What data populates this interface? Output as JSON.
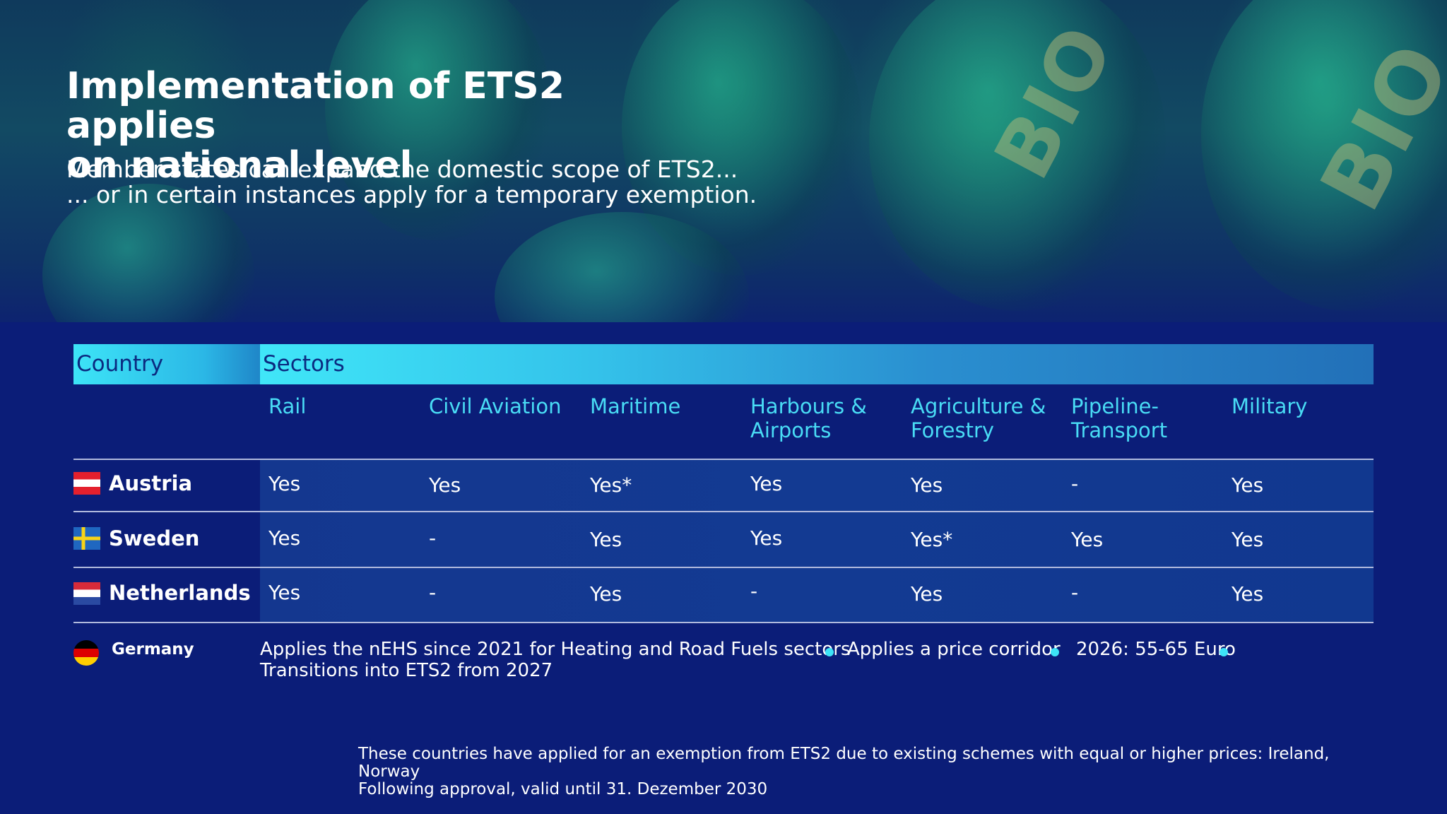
{
  "header": {
    "title": "Implementation of ETS2 applies\non national level",
    "subtitle": "Member states can expand the domestic scope of ETS2...\n... or in certain instances apply for a temporary exemption."
  },
  "table": {
    "country_header": "Country",
    "sectors_header": "Sectors",
    "sectors": [
      "Rail",
      "Civil Aviation",
      "Maritime",
      "Harbours & Airports",
      "Agriculture & Forestry",
      "Pipeline-Transport",
      "Military"
    ],
    "rows": [
      {
        "country": "Austria",
        "values": [
          "Yes",
          "Yes",
          "Yes*",
          "Yes",
          "Yes",
          "-",
          "Yes"
        ]
      },
      {
        "country": "Sweden",
        "values": [
          "Yes",
          "-",
          "Yes",
          "Yes",
          "Yes*",
          "Yes",
          "Yes"
        ]
      },
      {
        "country": "Netherlands",
        "values": [
          "Yes",
          "-",
          "Yes",
          "-",
          "Yes",
          "-",
          "Yes"
        ]
      }
    ]
  },
  "germany": {
    "country": "Germany",
    "line1": "Applies the nEHS since 2021 for Heating and Road Fuels sectors",
    "line2": "Transitions into ETS2 from 2027",
    "price": "Applies a price corridor",
    "range": "2026: 55-65 Euro"
  },
  "footnote": "These countries have applied for an exemption from ETS2 due to existing schemes with equal or higher prices: Ireland, Norway\nFollowing approval, valid until 31. Dezember 2030",
  "colors": {
    "background": "#0b1d78",
    "accent_cyan": "#3de4f7",
    "header_text": "#0b2a80",
    "row_fill": "#14378f"
  }
}
